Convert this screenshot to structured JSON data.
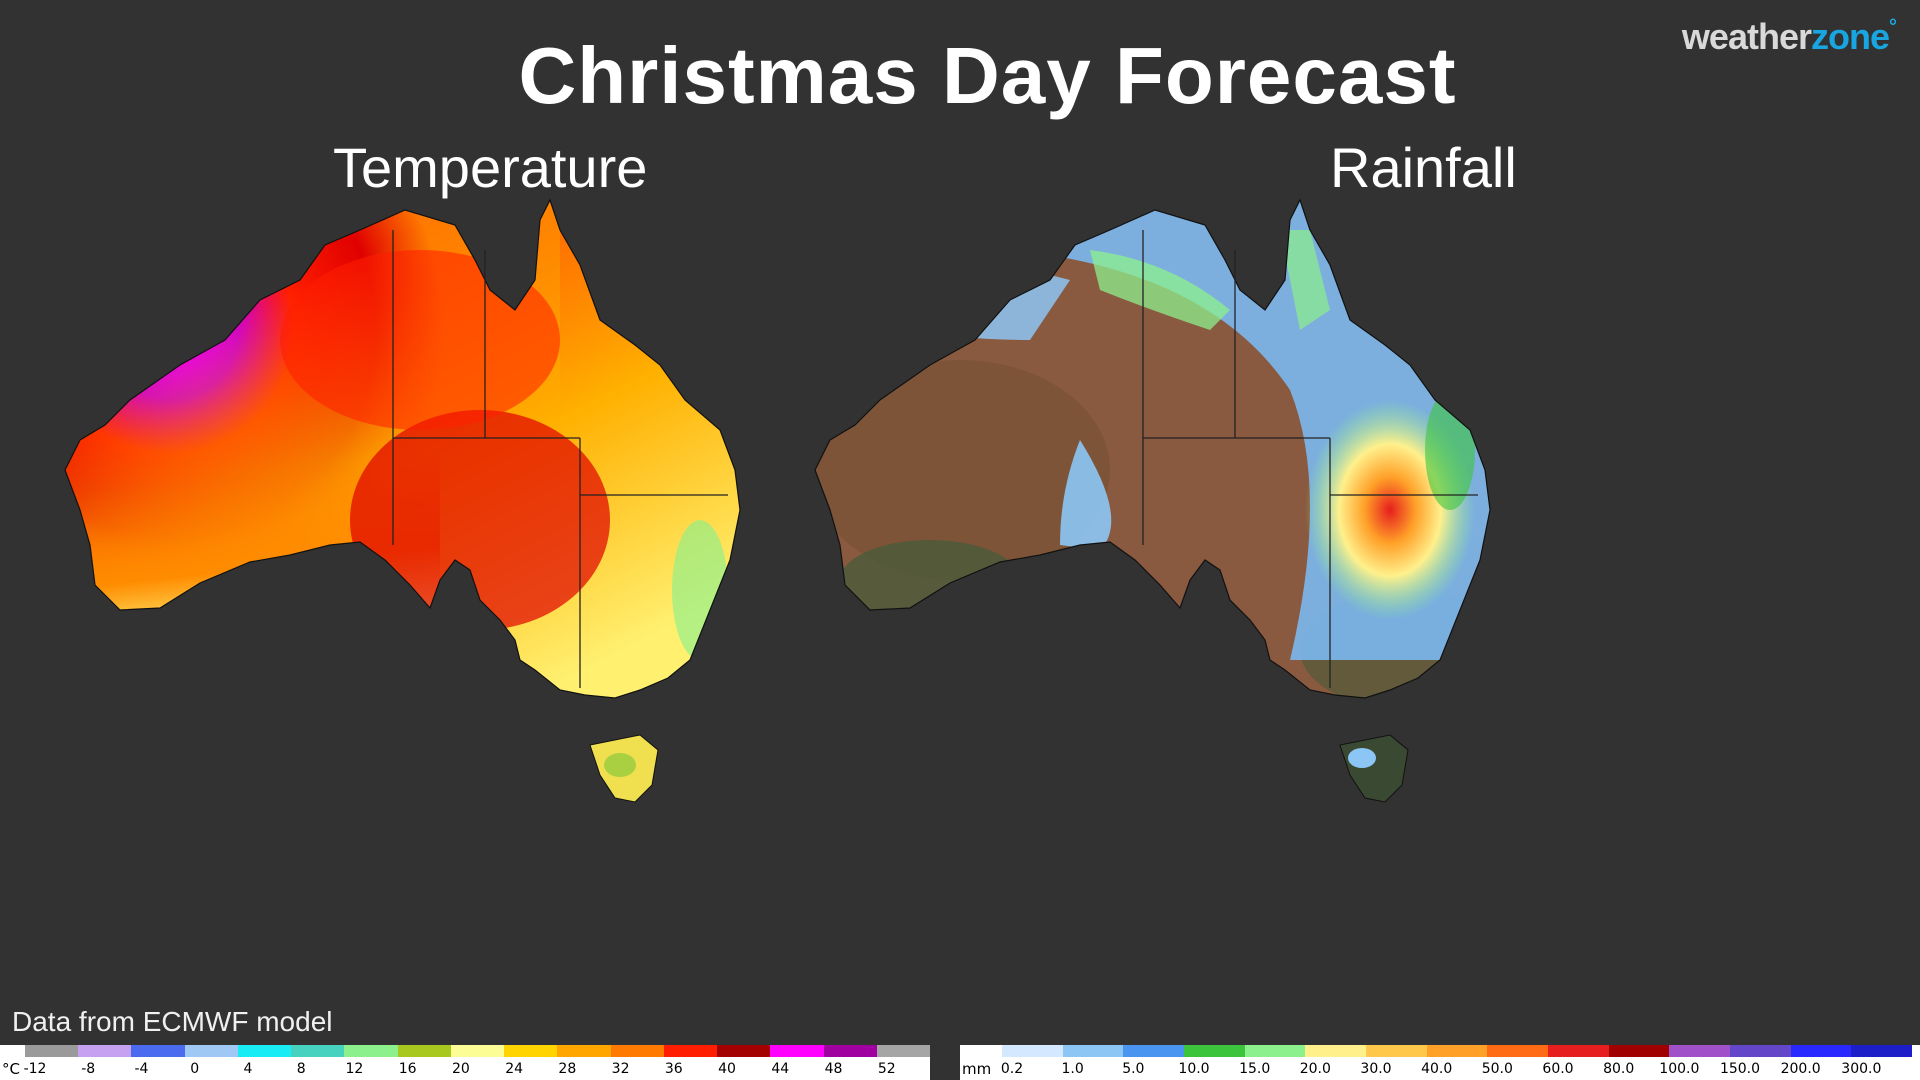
{
  "header": {
    "title": "Christmas Day Forecast",
    "logo_part1": "weather",
    "logo_part2": "zone",
    "logo_mark": "°"
  },
  "panels": {
    "left": {
      "title": "Temperature"
    },
    "right": {
      "title": "Rainfall"
    }
  },
  "source_note": "Data from ECMWF model",
  "temperature_legend": {
    "unit": "°C",
    "labels": [
      "-12",
      "-8",
      "-4",
      "0",
      "4",
      "8",
      "12",
      "16",
      "20",
      "24",
      "28",
      "32",
      "36",
      "40",
      "44",
      "48",
      "52"
    ],
    "colors": [
      "#9a9a9a",
      "#c7a1f1",
      "#4a6af0",
      "#9fc8f5",
      "#19ecf5",
      "#46d2be",
      "#8cf08c",
      "#a8c820",
      "#fdfd96",
      "#ffd400",
      "#ffa600",
      "#ff7a00",
      "#ff1e00",
      "#a30000",
      "#ff00ff",
      "#a000a0",
      "#a5a5a5"
    ]
  },
  "rainfall_legend": {
    "unit": "mm",
    "labels": [
      "0.2",
      "1.0",
      "5.0",
      "10.0",
      "15.0",
      "20.0",
      "30.0",
      "40.0",
      "50.0",
      "60.0",
      "80.0",
      "100.0",
      "150.0",
      "200.0",
      "300.0"
    ],
    "colors": [
      "#d4e8ff",
      "#8cc6f5",
      "#4a95f0",
      "#3dc43d",
      "#8cf08c",
      "#fff08c",
      "#ffc84a",
      "#ffa028",
      "#ff6a14",
      "#e61e1e",
      "#a00000",
      "#a050c8",
      "#6446c8",
      "#2828ff",
      "#1e1ec8"
    ]
  },
  "colors": {
    "background": "#323232",
    "logo_accent": "#19a6e0",
    "state_borders": "#222222"
  }
}
